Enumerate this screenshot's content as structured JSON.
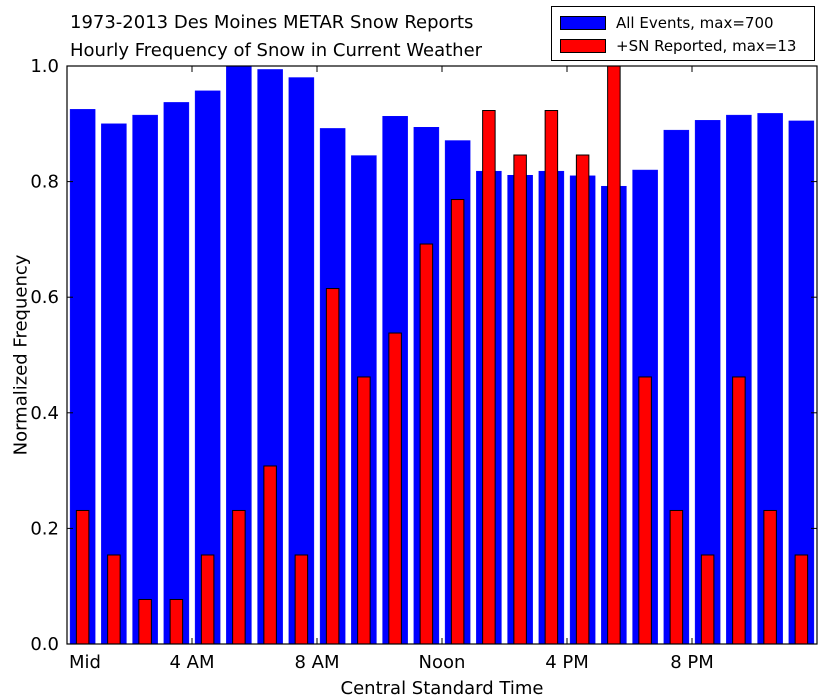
{
  "title_line1": "1973-2013 Des Moines METAR Snow Reports",
  "title_line2": "Hourly Frequency of Snow in Current Weather",
  "colors": {
    "all_events": "#0000ff",
    "sn_reported": "#ff0000",
    "edge": "#000000"
  },
  "chart_data": {
    "type": "bar",
    "xlabel": "Central Standard Time",
    "ylabel": "Normalized Frequency",
    "ylim": [
      0,
      1.0
    ],
    "yticks": [
      0.0,
      0.2,
      0.4,
      0.6,
      0.8,
      1.0
    ],
    "ytick_labels": [
      "0.0",
      "0.2",
      "0.4",
      "0.6",
      "0.8",
      "1.0"
    ],
    "xticks": [
      0,
      4,
      8,
      12,
      16,
      20
    ],
    "xtick_labels": [
      "Mid",
      "4 AM",
      "8 AM",
      "Noon",
      "4 PM",
      "8 PM"
    ],
    "x_hours": [
      0,
      1,
      2,
      3,
      4,
      5,
      6,
      7,
      8,
      9,
      10,
      11,
      12,
      13,
      14,
      15,
      16,
      17,
      18,
      19,
      20,
      21,
      22,
      23
    ],
    "legend_position": "top-right",
    "series": [
      {
        "name": "All Events, max=700",
        "values": [
          0.925,
          0.9,
          0.915,
          0.937,
          0.957,
          1.0,
          0.994,
          0.98,
          0.892,
          0.845,
          0.913,
          0.894,
          0.871,
          0.818,
          0.811,
          0.818,
          0.81,
          0.792,
          0.82,
          0.889,
          0.906,
          0.915,
          0.918,
          0.905
        ]
      },
      {
        "name": "+SN Reported, max=13",
        "values": [
          0.231,
          0.154,
          0.077,
          0.077,
          0.154,
          0.231,
          0.308,
          0.154,
          0.615,
          0.462,
          0.538,
          0.692,
          0.769,
          0.923,
          0.846,
          0.923,
          0.846,
          1.0,
          0.462,
          0.231,
          0.154,
          0.462,
          0.231,
          0.154
        ]
      }
    ]
  }
}
